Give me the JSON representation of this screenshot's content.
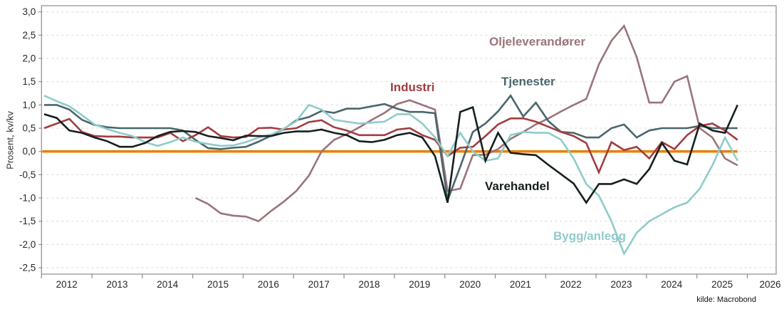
{
  "page": {
    "background": "#ffffff",
    "source_note": "kilde: Macrobond"
  },
  "y_axis": {
    "title": "Prosent, kv/kv",
    "tick_labels": [
      "3,0",
      "2,5",
      "2,0",
      "1,5",
      "1,0",
      "0,5",
      "0,0",
      "-0,5",
      "-1,0",
      "-1,5",
      "-2,0",
      "-2,5"
    ],
    "tick_values": [
      3.0,
      2.5,
      2.0,
      1.5,
      1.0,
      0.5,
      0.0,
      -0.5,
      -1.0,
      -1.5,
      -2.0,
      -2.5
    ],
    "min": -2.5,
    "max": 3.0
  },
  "x_axis": {
    "tick_years": [
      2012,
      2013,
      2014,
      2015,
      2016,
      2017,
      2018,
      2019,
      2020,
      2021,
      2022,
      2023,
      2024,
      2025,
      2026
    ],
    "labels": [
      "2012",
      "2013",
      "2014",
      "2015",
      "2016",
      "2017",
      "2018",
      "2019",
      "2020",
      "2021",
      "2022",
      "2023",
      "2024",
      "2025",
      "2026"
    ]
  },
  "colors": {
    "zero_line": "#E8820D",
    "gridline": "#D9D9D9",
    "border": "#8C8C8C",
    "tick_text": "#262626"
  },
  "chart_data": {
    "type": "line",
    "title": "",
    "ylabel": "Prosent, kv/kv",
    "ylim": [
      -2.5,
      3.0
    ],
    "grid": "horizontal-dashed",
    "zero_line": 0.0,
    "legend_position": "inline-labels",
    "quarters": [
      "2012Q1",
      "2012Q2",
      "2012Q3",
      "2012Q4",
      "2013Q1",
      "2013Q2",
      "2013Q3",
      "2013Q4",
      "2014Q1",
      "2014Q2",
      "2014Q3",
      "2014Q4",
      "2015Q1",
      "2015Q2",
      "2015Q3",
      "2015Q4",
      "2016Q1",
      "2016Q2",
      "2016Q3",
      "2016Q4",
      "2017Q1",
      "2017Q2",
      "2017Q3",
      "2017Q4",
      "2018Q1",
      "2018Q2",
      "2018Q3",
      "2018Q4",
      "2019Q1",
      "2019Q2",
      "2019Q3",
      "2019Q4",
      "2020Q1",
      "2020Q2",
      "2020Q3",
      "2020Q4",
      "2021Q1",
      "2021Q2",
      "2021Q3",
      "2021Q4",
      "2022Q1",
      "2022Q2",
      "2022Q3",
      "2022Q4",
      "2023Q1",
      "2023Q2",
      "2023Q3",
      "2023Q4",
      "2024Q1",
      "2024Q2",
      "2024Q3",
      "2024Q4",
      "2025Q1",
      "2025Q2",
      "2025Q3",
      "2025Q4"
    ],
    "series": [
      {
        "name": "Oljeleverandører",
        "color": "#9A747A",
        "values": [
          null,
          null,
          null,
          null,
          null,
          null,
          null,
          null,
          null,
          null,
          null,
          null,
          -1.0,
          -1.13,
          -1.33,
          -1.38,
          -1.4,
          -1.5,
          -1.28,
          -1.08,
          -0.85,
          -0.52,
          0.0,
          0.25,
          0.37,
          0.52,
          0.68,
          0.83,
          1.02,
          1.1,
          1.0,
          0.9,
          -0.85,
          -0.8,
          -0.08,
          -0.07,
          0.05,
          0.27,
          0.42,
          0.58,
          0.71,
          0.86,
          1.0,
          1.13,
          1.87,
          2.38,
          2.7,
          2.03,
          1.05,
          1.05,
          1.5,
          1.62,
          0.5,
          0.3,
          -0.15,
          -0.3
        ]
      },
      {
        "name": "Tjenester",
        "color": "#4A666C",
        "values": [
          1.0,
          1.0,
          0.9,
          0.68,
          0.57,
          0.52,
          0.5,
          0.5,
          0.5,
          0.5,
          0.5,
          0.45,
          0.25,
          0.07,
          0.05,
          0.08,
          0.1,
          0.21,
          0.34,
          0.48,
          0.67,
          0.74,
          0.87,
          0.83,
          0.92,
          0.92,
          0.97,
          1.02,
          0.92,
          0.85,
          0.85,
          0.82,
          -1.05,
          -0.33,
          0.42,
          0.6,
          0.86,
          1.2,
          0.75,
          1.05,
          0.65,
          0.42,
          0.4,
          0.3,
          0.3,
          0.5,
          0.58,
          0.3,
          0.45,
          0.5,
          0.5,
          0.5,
          0.55,
          0.5,
          0.5,
          0.5
        ]
      },
      {
        "name": "Industri",
        "color": "#A23C3F",
        "values": [
          0.5,
          0.6,
          0.7,
          0.42,
          0.33,
          0.32,
          0.32,
          0.3,
          0.3,
          0.3,
          0.4,
          0.22,
          0.35,
          0.52,
          0.33,
          0.3,
          0.31,
          0.5,
          0.51,
          0.47,
          0.5,
          0.63,
          0.67,
          0.52,
          0.45,
          0.35,
          0.35,
          0.35,
          0.47,
          0.5,
          0.35,
          0.25,
          -0.1,
          0.08,
          0.1,
          0.33,
          0.58,
          0.71,
          0.71,
          0.64,
          0.53,
          0.42,
          0.33,
          0.18,
          -0.45,
          0.2,
          0.03,
          0.1,
          -0.15,
          0.2,
          0.05,
          0.35,
          0.55,
          0.6,
          0.45,
          0.25
        ]
      },
      {
        "name": "Bygg/anlegg",
        "color": "#8FCCC9",
        "values": [
          1.2,
          1.08,
          0.97,
          0.78,
          0.58,
          0.48,
          0.4,
          0.33,
          0.2,
          0.12,
          0.2,
          0.3,
          0.21,
          0.16,
          0.12,
          0.13,
          0.2,
          0.3,
          0.36,
          0.49,
          0.65,
          1.0,
          0.9,
          0.68,
          0.64,
          0.6,
          0.62,
          0.64,
          0.8,
          0.8,
          0.6,
          0.3,
          -0.1,
          0.4,
          0.0,
          -0.2,
          -0.15,
          0.35,
          0.42,
          0.4,
          0.4,
          0.25,
          -0.15,
          -0.7,
          -0.95,
          -1.5,
          -2.2,
          -1.75,
          -1.5,
          -1.35,
          -1.2,
          -1.1,
          -0.8,
          -0.3,
          0.3,
          -0.2
        ]
      },
      {
        "name": "Varehandel",
        "color": "#161F1F",
        "values": [
          0.8,
          0.72,
          0.45,
          0.4,
          0.3,
          0.22,
          0.1,
          0.1,
          0.18,
          0.33,
          0.42,
          0.44,
          0.42,
          0.33,
          0.29,
          0.24,
          0.34,
          0.33,
          0.33,
          0.4,
          0.43,
          0.43,
          0.47,
          0.4,
          0.35,
          0.22,
          0.2,
          0.25,
          0.35,
          0.4,
          0.3,
          -0.1,
          -1.1,
          0.85,
          0.95,
          -0.2,
          0.4,
          -0.03,
          -0.06,
          -0.08,
          -0.29,
          -0.49,
          -0.69,
          -1.1,
          -0.7,
          -0.7,
          -0.6,
          -0.7,
          -0.38,
          0.18,
          -0.2,
          -0.28,
          0.6,
          0.45,
          0.4,
          1.0
        ]
      }
    ]
  }
}
